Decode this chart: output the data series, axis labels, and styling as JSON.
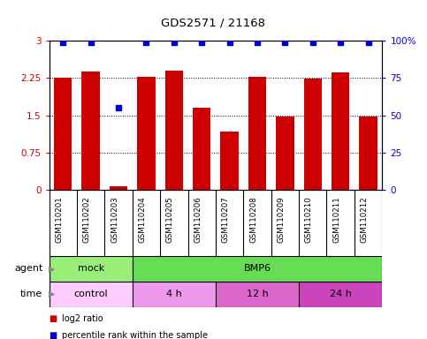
{
  "title": "GDS2571 / 21168",
  "samples": [
    "GSM110201",
    "GSM110202",
    "GSM110203",
    "GSM110204",
    "GSM110205",
    "GSM110206",
    "GSM110207",
    "GSM110208",
    "GSM110209",
    "GSM110210",
    "GSM110211",
    "GSM110212"
  ],
  "log2_ratio": [
    2.26,
    2.38,
    0.07,
    2.28,
    2.4,
    1.65,
    1.17,
    2.28,
    1.48,
    2.24,
    2.36,
    1.48
  ],
  "percentile": [
    99,
    99,
    55,
    99,
    99,
    99,
    99,
    99,
    99,
    99,
    99,
    99
  ],
  "bar_color": "#cc0000",
  "dot_color": "#0000cc",
  "ylim_left": [
    0,
    3
  ],
  "ylim_right": [
    0,
    100
  ],
  "yticks_left": [
    0,
    0.75,
    1.5,
    2.25,
    3
  ],
  "yticks_left_labels": [
    "0",
    "0.75",
    "1.5",
    "2.25",
    "3"
  ],
  "yticks_right": [
    0,
    25,
    50,
    75,
    100
  ],
  "yticks_right_labels": [
    "0",
    "25",
    "50",
    "75",
    "100%"
  ],
  "agent_row": [
    {
      "label": "mock",
      "start": 0,
      "end": 3,
      "color": "#99ee77"
    },
    {
      "label": "BMP6",
      "start": 3,
      "end": 12,
      "color": "#66dd55"
    }
  ],
  "time_row": [
    {
      "label": "control",
      "start": 0,
      "end": 3,
      "color": "#ffccff"
    },
    {
      "label": "4 h",
      "start": 3,
      "end": 6,
      "color": "#ee99ee"
    },
    {
      "label": "12 h",
      "start": 6,
      "end": 9,
      "color": "#dd66cc"
    },
    {
      "label": "24 h",
      "start": 9,
      "end": 12,
      "color": "#cc44bb"
    }
  ],
  "agent_label": "agent",
  "time_label": "time",
  "legend_bar_label": "log2 ratio",
  "legend_dot_label": "percentile rank within the sample",
  "left_axis_color": "#cc0000",
  "right_axis_color": "#0000cc",
  "background_color": "#ffffff",
  "sample_bg_color": "#cccccc"
}
